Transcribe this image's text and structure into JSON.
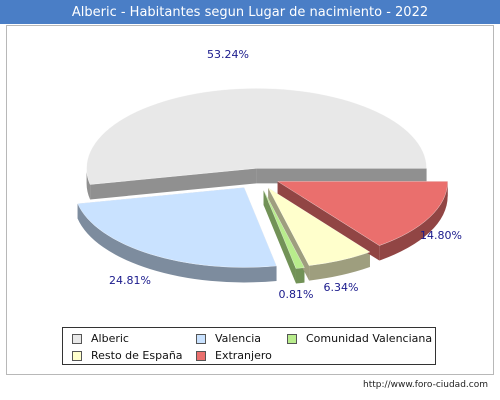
{
  "chart_data": {
    "type": "pie",
    "title": "Alberic - Habitantes segun Lugar de nacimiento - 2022",
    "slices": [
      {
        "name": "Alberic",
        "value": 53.24,
        "label": "53.24%",
        "color": "#e8e8e8"
      },
      {
        "name": "Valencia",
        "value": 24.81,
        "label": "24.81%",
        "color": "#c9e2ff"
      },
      {
        "name": "Comunidad Valenciana",
        "value": 0.81,
        "label": "0.81%",
        "color": "#b8ec8c"
      },
      {
        "name": "Resto de España",
        "value": 6.34,
        "label": "6.34%",
        "color": "#ffffcc"
      },
      {
        "name": "Extranjero",
        "value": 14.8,
        "label": "14.80%",
        "color": "#ea6f6d"
      }
    ],
    "legend_position": "bottom"
  },
  "colors": {
    "title_bar": "#4a7ec6",
    "label_text": "#1a1a8c"
  },
  "footer": {
    "url": "http://www.foro-ciudad.com"
  }
}
